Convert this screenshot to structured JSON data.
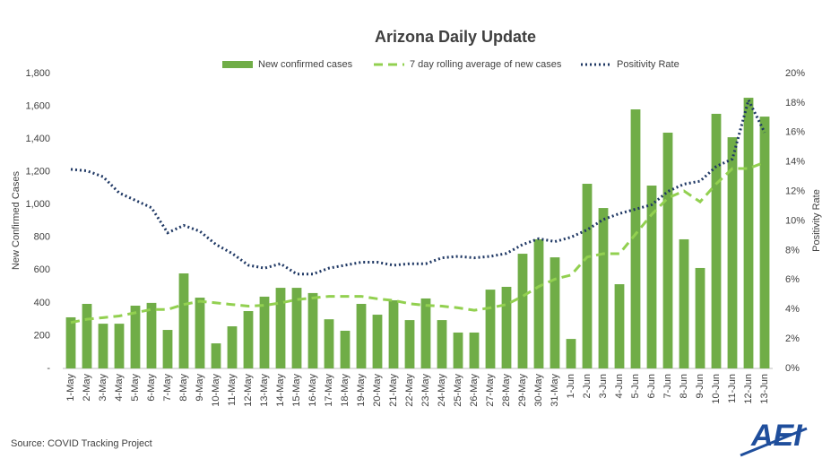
{
  "chart_data": {
    "type": "bar",
    "title": "Arizona Daily Update",
    "categories": [
      "1-May",
      "2-May",
      "3-May",
      "4-May",
      "5-May",
      "6-May",
      "7-May",
      "8-May",
      "9-May",
      "10-May",
      "11-May",
      "12-May",
      "13-May",
      "14-May",
      "15-May",
      "16-May",
      "17-May",
      "18-May",
      "19-May",
      "20-May",
      "21-May",
      "22-May",
      "23-May",
      "24-May",
      "25-May",
      "26-May",
      "27-May",
      "28-May",
      "29-May",
      "30-May",
      "31-May",
      "1-Jun",
      "2-Jun",
      "3-Jun",
      "4-Jun",
      "5-Jun",
      "6-Jun",
      "7-Jun",
      "8-Jun",
      "9-Jun",
      "10-Jun",
      "11-Jun",
      "12-Jun",
      "13-Jun"
    ],
    "series": [
      {
        "name": "New confirmed cases",
        "type": "bar",
        "color": "#70ad47",
        "values": [
          312,
          394,
          273,
          273,
          383,
          400,
          235,
          580,
          432,
          153,
          257,
          350,
          438,
          492,
          492,
          460,
          300,
          230,
          394,
          328,
          416,
          295,
          427,
          295,
          219,
          219,
          481,
          498,
          700,
          788,
          678,
          180,
          1127,
          979,
          514,
          1581,
          1116,
          1439,
          788,
          613,
          1554,
          1411,
          1652,
          1537
        ]
      },
      {
        "name": "7 day rolling average of new cases",
        "type": "line",
        "dash": "dashed",
        "color": "#92d050",
        "values": [
          280,
          300,
          310,
          320,
          340,
          360,
          360,
          390,
          410,
          400,
          390,
          380,
          385,
          400,
          420,
          430,
          440,
          440,
          440,
          425,
          415,
          395,
          385,
          380,
          370,
          355,
          370,
          390,
          440,
          500,
          545,
          570,
          680,
          700,
          700,
          820,
          940,
          1040,
          1083,
          1017,
          1127,
          1220,
          1220,
          1258
        ]
      },
      {
        "name": "Positivity Rate",
        "type": "line",
        "dash": "dotted",
        "color": "#1f3864",
        "axis": "y2",
        "values": [
          13.5,
          13.4,
          13.0,
          11.9,
          11.4,
          10.9,
          9.2,
          9.7,
          9.3,
          8.4,
          7.8,
          7.0,
          6.8,
          7.1,
          6.4,
          6.4,
          6.8,
          7.0,
          7.2,
          7.2,
          7.0,
          7.1,
          7.1,
          7.5,
          7.6,
          7.5,
          7.6,
          7.8,
          8.4,
          8.8,
          8.6,
          8.9,
          9.4,
          10.1,
          10.5,
          10.8,
          11.1,
          12.0,
          12.5,
          12.7,
          13.7,
          14.2,
          18.2,
          16.0
        ]
      }
    ],
    "ylabel": "New Confirmed Cases",
    "y2label": "Positivity Rate",
    "ylim": [
      0,
      1800
    ],
    "yticks": [
      {
        "value": 0,
        "label": "-"
      },
      200,
      400,
      600,
      800,
      {
        "value": 1000,
        "label": "1,000"
      },
      {
        "value": 1200,
        "label": "1,200"
      },
      {
        "value": 1400,
        "label": "1,400"
      },
      {
        "value": 1600,
        "label": "1,600"
      },
      {
        "value": 1800,
        "label": "1,800"
      }
    ],
    "y2lim": [
      0,
      20
    ],
    "y2ticks": [
      {
        "value": 0,
        "label": "0%"
      },
      {
        "value": 2,
        "label": "2%"
      },
      {
        "value": 4,
        "label": "4%"
      },
      {
        "value": 6,
        "label": "6%"
      },
      {
        "value": 8,
        "label": "8%"
      },
      {
        "value": 10,
        "label": "10%"
      },
      {
        "value": 12,
        "label": "12%"
      },
      {
        "value": 14,
        "label": "14%"
      },
      {
        "value": 16,
        "label": "16%"
      },
      {
        "value": 18,
        "label": "18%"
      },
      {
        "value": 20,
        "label": "20%"
      }
    ],
    "grid": false,
    "source": "Source: COVID Tracking Project",
    "logo": "AEI"
  }
}
